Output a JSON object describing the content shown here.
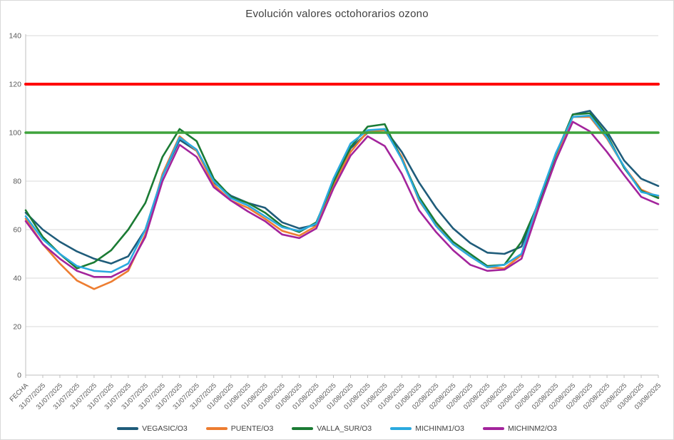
{
  "chart_data": {
    "type": "line",
    "title": "Evolución valores octohorarios ozono",
    "xlabel": "",
    "ylabel": "",
    "ylim": [
      0,
      140
    ],
    "ytick_interval": 20,
    "yticks": [
      0,
      20,
      40,
      60,
      80,
      100,
      120,
      140
    ],
    "grid": true,
    "legend_position": "bottom",
    "categories": [
      "FECHA",
      "31/07/2025",
      "31/07/2025",
      "31/07/2025",
      "31/07/2025",
      "31/07/2025",
      "31/07/2025",
      "31/07/2025",
      "31/07/2025",
      "31/07/2025",
      "31/07/2025",
      "31/07/2025",
      "01/08/2025",
      "01/08/2025",
      "01/08/2025",
      "01/08/2025",
      "01/08/2025",
      "01/08/2025",
      "01/08/2025",
      "01/08/2025",
      "01/08/2025",
      "01/08/2025",
      "01/08/2025",
      "01/08/2025",
      "02/08/2025",
      "02/08/2025",
      "02/08/2025",
      "02/08/2025",
      "02/08/2025",
      "02/08/2025",
      "02/08/2025",
      "02/08/2025",
      "02/08/2025",
      "02/08/2025",
      "02/08/2025",
      "02/08/2025",
      "03/08/2025",
      "03/08/2025"
    ],
    "series": [
      {
        "name": "VEGASIC/O3",
        "color": "#1F5C7A",
        "values": [
          67,
          60,
          55,
          51,
          48,
          46,
          49,
          60,
          82,
          97,
          92.5,
          79.5,
          74,
          71,
          69,
          63,
          60.5,
          62,
          80,
          93.5,
          100,
          101.5,
          92,
          79.5,
          69,
          60.5,
          54.5,
          50.5,
          50,
          53,
          71.5,
          90.5,
          107.5,
          109,
          100.5,
          88.5,
          81,
          78
        ]
      },
      {
        "name": "PUENTE/O3",
        "color": "#ED7D31",
        "values": [
          64.5,
          54,
          46,
          39,
          35.5,
          38.5,
          43,
          58,
          83,
          98.5,
          92.5,
          78.5,
          72,
          69,
          64.5,
          59.5,
          57.5,
          61.5,
          78,
          92,
          100.5,
          101,
          90,
          72,
          62,
          54,
          49,
          44.5,
          44,
          49.5,
          70.5,
          90,
          106.5,
          106.5,
          97.5,
          86,
          76.5,
          73.5
        ]
      },
      {
        "name": "VALLA_SUR/O3",
        "color": "#1B7B34",
        "values": [
          68,
          57,
          50,
          44,
          46.5,
          51.5,
          60,
          71,
          90,
          101.5,
          96.5,
          81,
          73.5,
          71,
          67,
          61.5,
          59,
          63,
          79.5,
          94,
          102.5,
          103.5,
          89,
          73.5,
          63,
          55,
          50,
          45,
          45.5,
          55,
          71,
          91,
          107.5,
          108,
          99,
          85.5,
          76,
          73
        ]
      },
      {
        "name": "MICHINM1/O3",
        "color": "#2BA9DF",
        "values": [
          65.5,
          56,
          50,
          45,
          43,
          42.5,
          46,
          60,
          82,
          98,
          93,
          80,
          73,
          70,
          65.5,
          61,
          59.5,
          62.5,
          81,
          95.5,
          101,
          101.5,
          89,
          72.5,
          61.5,
          54,
          49,
          44.5,
          45.5,
          50,
          72,
          91.5,
          106.5,
          107,
          98,
          86,
          75.5,
          74
        ]
      },
      {
        "name": "MICHINM2/O3",
        "color": "#A3249C",
        "values": [
          63.5,
          54,
          48,
          43,
          40.5,
          40.5,
          44,
          57,
          80,
          95,
          90,
          77.5,
          72,
          67.5,
          63.5,
          58,
          56.5,
          60.5,
          77,
          90.5,
          98.5,
          94.5,
          83,
          68,
          59,
          51.5,
          45.5,
          43,
          43.5,
          48,
          69,
          88.5,
          104.5,
          100.5,
          92,
          82.5,
          73.5,
          70.5
        ]
      }
    ],
    "reference_lines": [
      {
        "value": 120,
        "color": "#FF0000",
        "width": 4
      },
      {
        "value": 100,
        "color": "#3FA33C",
        "width": 3.5
      }
    ],
    "colors": {
      "gridline": "#D9D9D9",
      "axis_line": "#BFBFBF",
      "tick": "#BFBFBF",
      "axis_text": "#595959",
      "title_text": "#3F3F3F"
    }
  }
}
